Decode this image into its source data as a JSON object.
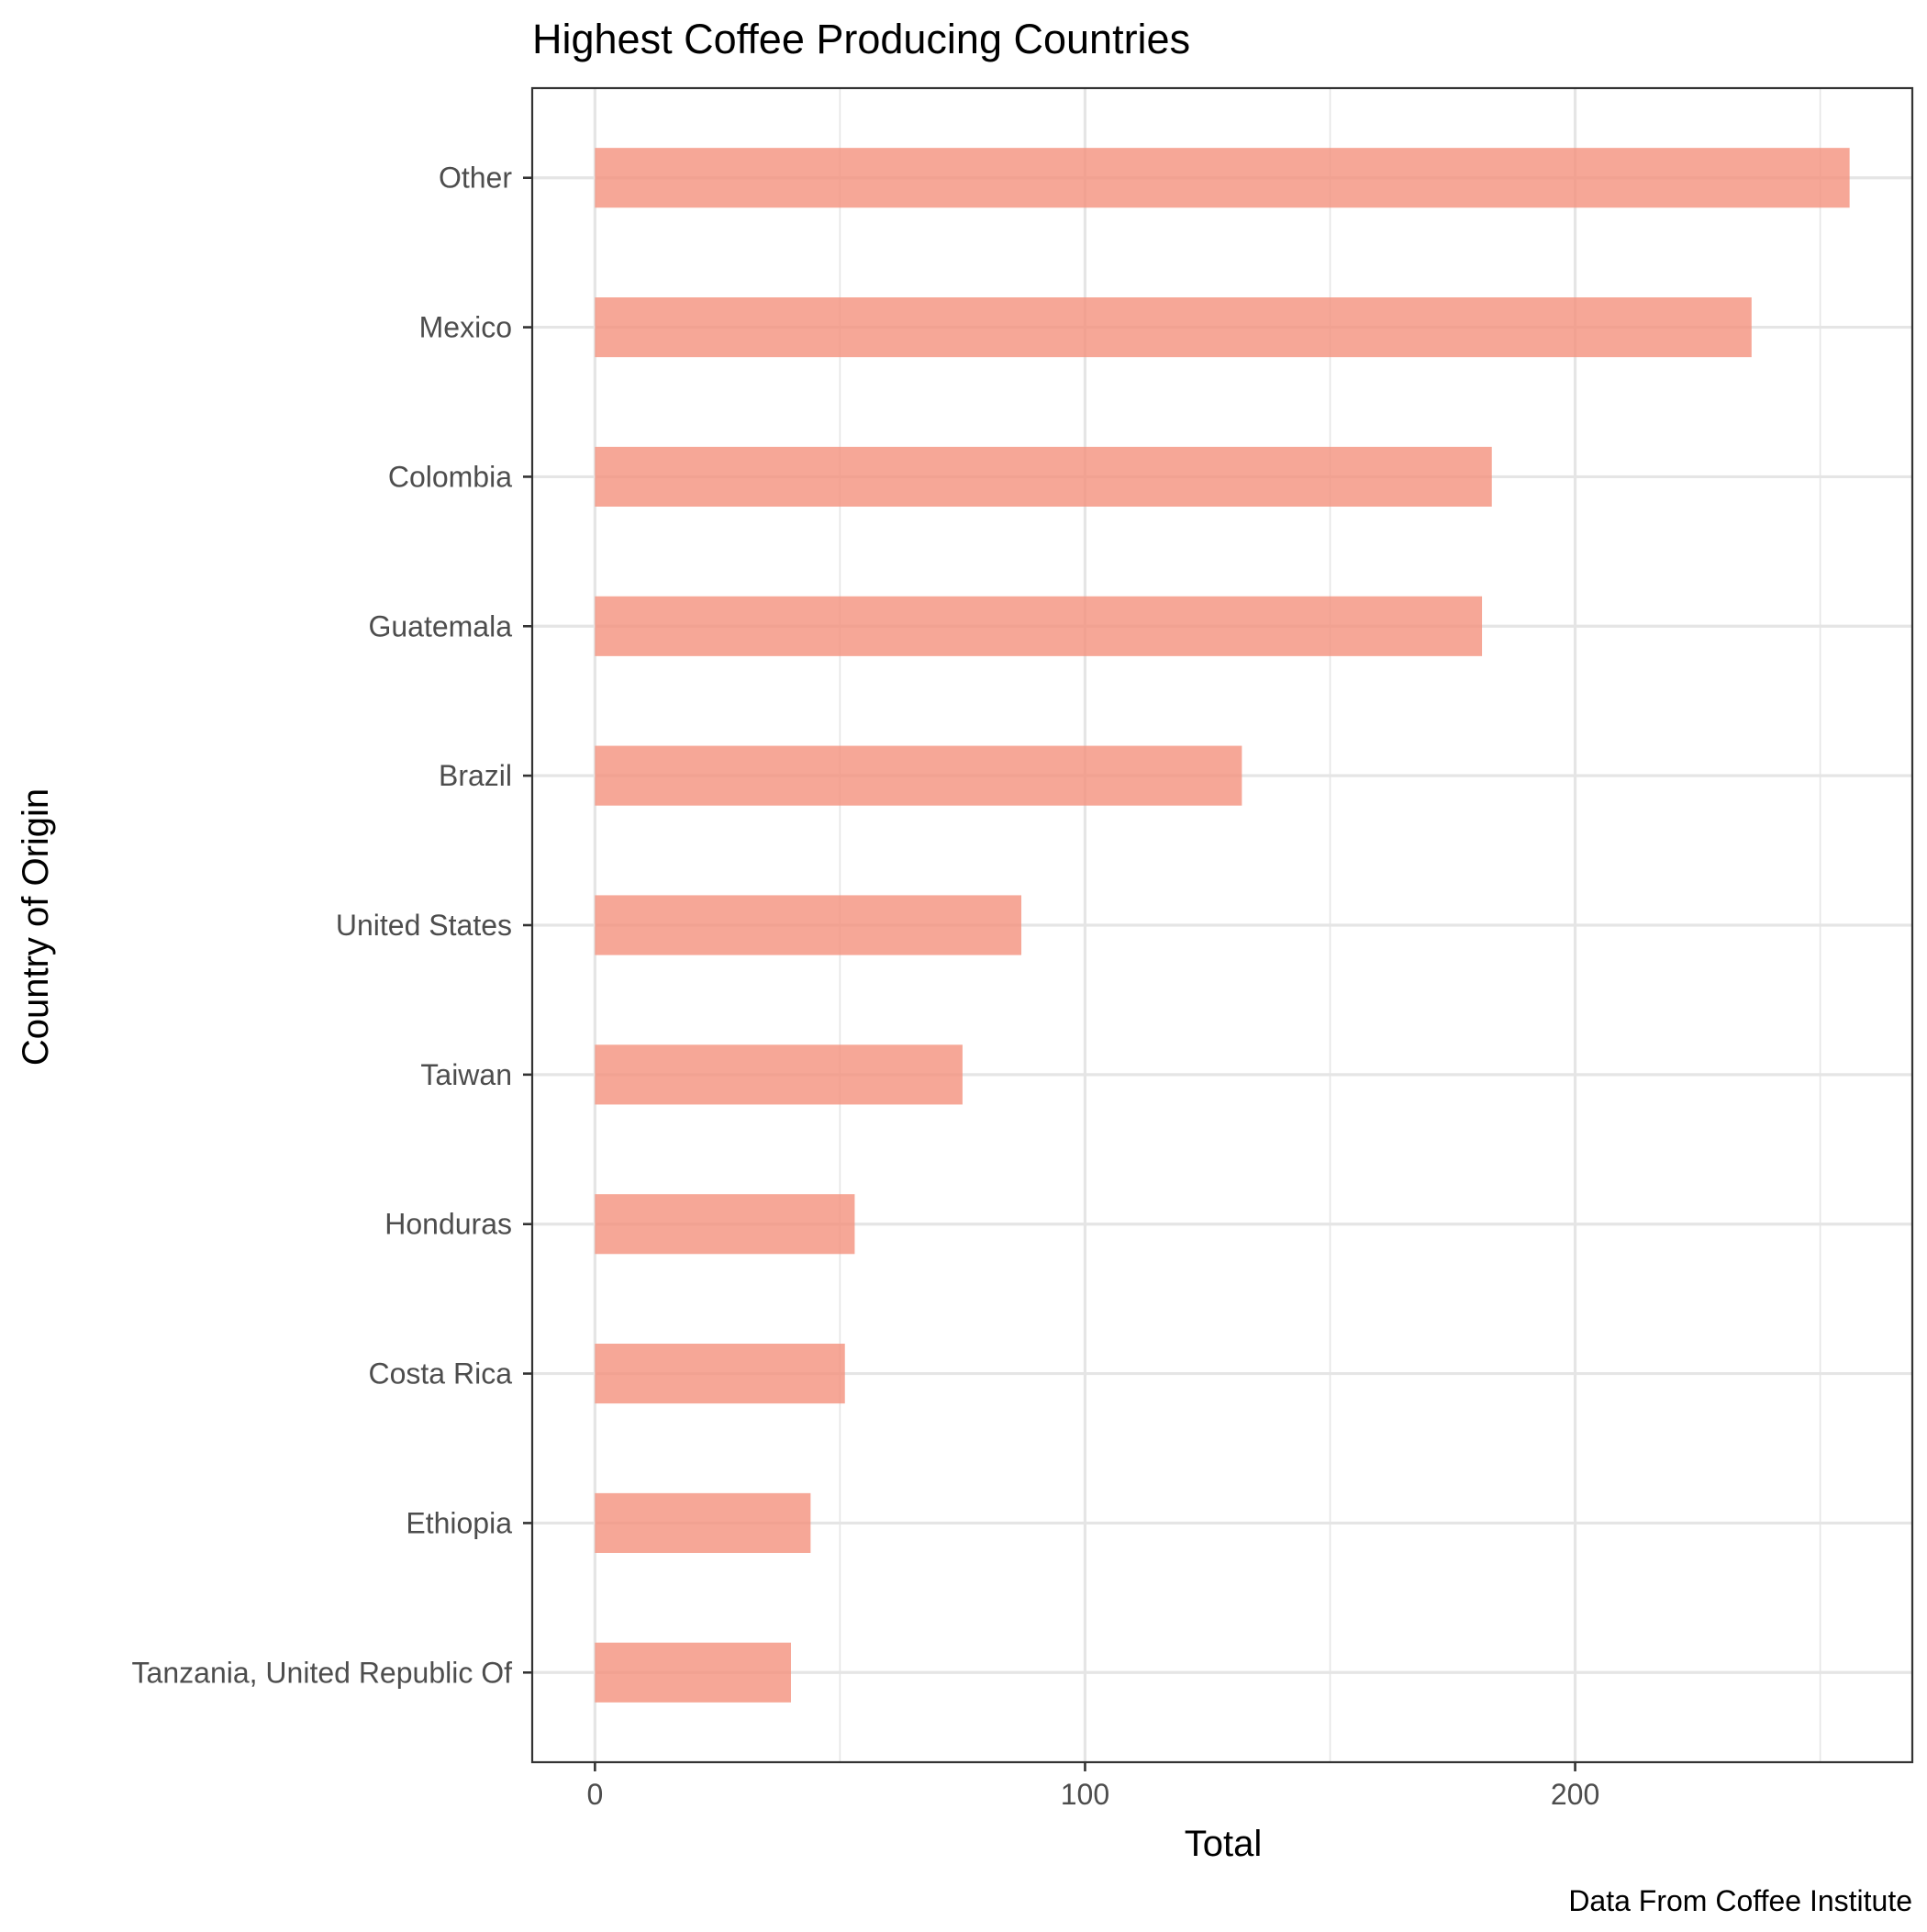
{
  "chart_data": {
    "type": "bar",
    "orientation": "horizontal",
    "title": "Highest Coffee Producing Countries",
    "xlabel": "Total",
    "ylabel": "Country of Origin",
    "caption": "Data From Coffee Institute",
    "categories": [
      "Tanzania, United Republic Of",
      "Ethiopia",
      "Costa Rica",
      "Honduras",
      "Taiwan",
      "United States",
      "Brazil",
      "Guatemala",
      "Colombia",
      "Mexico",
      "Other"
    ],
    "values": [
      40,
      44,
      51,
      53,
      75,
      87,
      132,
      181,
      183,
      236,
      256
    ],
    "xlim": [
      -12.8,
      268.8
    ],
    "xticks": [
      0,
      100,
      200
    ],
    "xtick_labels": [
      "0",
      "100",
      "200"
    ],
    "grid": true,
    "legend": "none",
    "colors": {
      "bar": "#f4917d",
      "bar_opacity": 0.8,
      "grid": "#e5e5e5",
      "panel_border": "#333333",
      "text": "#4d4d4d",
      "title_text": "#000000"
    }
  }
}
